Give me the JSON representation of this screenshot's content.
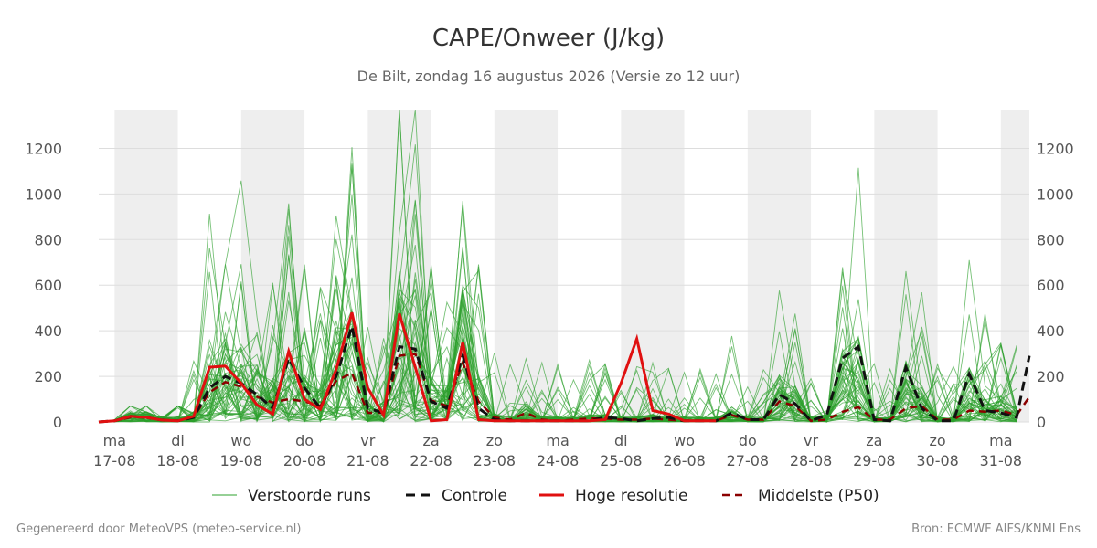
{
  "chart_data": {
    "type": "line",
    "title": "CAPE/Onweer (J/kg)",
    "subtitle": "De Bilt, zondag 16 augustus 2026 (Versie zo 12 uur)",
    "xlabel": "",
    "ylabel": "",
    "y_ticks": [
      0,
      200,
      400,
      600,
      800,
      1000,
      1200
    ],
    "ylim": [
      0,
      1370
    ],
    "grid": true,
    "legend_position": "bottom",
    "x_unit": "day",
    "xlim": [
      -0.25,
      14.45
    ],
    "x_ticks": [
      {
        "day": 0,
        "weekday": "ma",
        "date": "17-08"
      },
      {
        "day": 1,
        "weekday": "di",
        "date": "18-08"
      },
      {
        "day": 2,
        "weekday": "wo",
        "date": "19-08"
      },
      {
        "day": 3,
        "weekday": "do",
        "date": "20-08"
      },
      {
        "day": 4,
        "weekday": "vr",
        "date": "21-08"
      },
      {
        "day": 5,
        "weekday": "za",
        "date": "22-08"
      },
      {
        "day": 6,
        "weekday": "zo",
        "date": "23-08"
      },
      {
        "day": 7,
        "weekday": "ma",
        "date": "24-08"
      },
      {
        "day": 8,
        "weekday": "di",
        "date": "25-08"
      },
      {
        "day": 9,
        "weekday": "wo",
        "date": "26-08"
      },
      {
        "day": 10,
        "weekday": "do",
        "date": "27-08"
      },
      {
        "day": 11,
        "weekday": "vr",
        "date": "28-08"
      },
      {
        "day": 12,
        "weekday": "za",
        "date": "29-08"
      },
      {
        "day": 13,
        "weekday": "zo",
        "date": "30-08"
      },
      {
        "day": 14,
        "weekday": "ma",
        "date": "31-08"
      }
    ],
    "shaded_days": [
      [
        0,
        1
      ],
      [
        2,
        3
      ],
      [
        4,
        5
      ],
      [
        6,
        7
      ],
      [
        8,
        9
      ],
      [
        10,
        11
      ],
      [
        12,
        13
      ],
      [
        14,
        14.45
      ]
    ],
    "colors": {
      "ensemble": "#2ca02c",
      "control": "#111111",
      "hires": "#e01010",
      "median": "#8b0000",
      "shade": "#eeeeee",
      "grid": "#dddddd"
    },
    "legend": [
      {
        "key": "ensemble",
        "label": "Verstoorde runs"
      },
      {
        "key": "control",
        "label": "Controle"
      },
      {
        "key": "hires",
        "label": "Hoge resolutie"
      },
      {
        "key": "median",
        "label": "Middelste (P50)"
      }
    ],
    "hires": {
      "x": [
        -0.25,
        0,
        0.25,
        0.5,
        0.75,
        1,
        1.25,
        1.5,
        1.75,
        2,
        2.25,
        2.5,
        2.75,
        3,
        3.25,
        3.5,
        3.75,
        4,
        4.25,
        4.5,
        4.75,
        5,
        5.25,
        5.5,
        5.75,
        6,
        6.25,
        6.5,
        6.75,
        7,
        7.25,
        7.5,
        7.75,
        8,
        8.25,
        8.5,
        8.75,
        9,
        9.25,
        9.5
      ],
      "y": [
        0,
        5,
        25,
        20,
        8,
        5,
        25,
        240,
        245,
        170,
        75,
        35,
        310,
        100,
        55,
        230,
        480,
        150,
        30,
        475,
        240,
        5,
        10,
        350,
        10,
        5,
        5,
        5,
        5,
        5,
        5,
        5,
        10,
        170,
        365,
        50,
        35,
        5,
        5,
        5
      ]
    },
    "control": {
      "x": [
        -0.25,
        0,
        0.25,
        0.5,
        0.75,
        1,
        1.25,
        1.5,
        1.75,
        2,
        2.25,
        2.5,
        2.75,
        3,
        3.25,
        3.5,
        3.75,
        4,
        4.25,
        4.5,
        4.75,
        5,
        5.25,
        5.5,
        5.75,
        6,
        6.25,
        6.5,
        6.75,
        7,
        7.25,
        7.5,
        7.75,
        8,
        8.25,
        8.5,
        8.75,
        9,
        9.25,
        9.5,
        9.75,
        10,
        10.25,
        10.5,
        10.75,
        11,
        11.25,
        11.5,
        11.75,
        12,
        12.25,
        12.5,
        12.75,
        13,
        13.25,
        13.5,
        13.75,
        14,
        14.25,
        14.45
      ],
      "y": [
        0,
        5,
        25,
        20,
        8,
        5,
        20,
        150,
        200,
        170,
        120,
        60,
        280,
        150,
        60,
        200,
        420,
        60,
        40,
        330,
        320,
        90,
        60,
        290,
        60,
        10,
        5,
        5,
        5,
        5,
        5,
        5,
        20,
        15,
        5,
        15,
        20,
        5,
        5,
        5,
        40,
        10,
        10,
        120,
        80,
        5,
        30,
        280,
        330,
        10,
        5,
        240,
        60,
        5,
        5,
        210,
        50,
        40,
        20,
        290
      ]
    },
    "median": {
      "x": [
        -0.25,
        0,
        0.25,
        0.5,
        0.75,
        1,
        1.25,
        1.5,
        1.75,
        2,
        2.25,
        2.5,
        2.75,
        3,
        3.25,
        3.5,
        3.75,
        4,
        4.25,
        4.5,
        4.75,
        5,
        5.25,
        5.5,
        5.75,
        6,
        6.25,
        6.5,
        6.75,
        7,
        7.25,
        7.5,
        7.75,
        8,
        8.25,
        8.5,
        8.75,
        9,
        9.25,
        9.5,
        9.75,
        10,
        10.25,
        10.5,
        10.75,
        11,
        11.25,
        11.5,
        11.75,
        12,
        12.25,
        12.5,
        12.75,
        13,
        13.25,
        13.5,
        13.75,
        14,
        14.25,
        14.45
      ],
      "y": [
        0,
        5,
        20,
        20,
        10,
        5,
        20,
        130,
        175,
        155,
        110,
        85,
        100,
        90,
        70,
        180,
        215,
        40,
        40,
        290,
        300,
        95,
        70,
        260,
        90,
        20,
        10,
        40,
        10,
        5,
        10,
        15,
        15,
        10,
        10,
        15,
        10,
        5,
        5,
        5,
        30,
        10,
        10,
        90,
        70,
        5,
        10,
        45,
        65,
        10,
        10,
        60,
        70,
        10,
        10,
        50,
        45,
        50,
        30,
        110
      ]
    },
    "ensemble_seed": 17,
    "ensemble_count": 50
  },
  "footer": {
    "left": "Gegenereerd door MeteoVPS (meteo-service.nl)",
    "right": "Bron: ECMWF AIFS/KNMI Ens"
  }
}
